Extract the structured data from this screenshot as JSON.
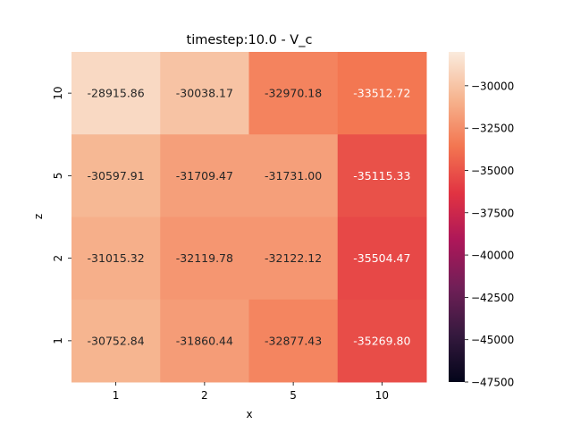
{
  "chart_data": {
    "type": "heatmap",
    "title": "timestep:10.0 - V_c",
    "xlabel": "x",
    "ylabel": "z",
    "x_categories": [
      "1",
      "2",
      "5",
      "10"
    ],
    "y_categories": [
      "10",
      "5",
      "2",
      "1"
    ],
    "values": [
      [
        -28915.86,
        -30038.17,
        -32970.18,
        -33512.72
      ],
      [
        -30597.91,
        -31709.47,
        -31731.0,
        -35115.33
      ],
      [
        -31015.32,
        -32119.78,
        -32122.12,
        -35504.47
      ],
      [
        -30752.84,
        -31860.44,
        -32877.43,
        -35269.8
      ]
    ],
    "value_labels": [
      [
        "-28915.86",
        "-30038.17",
        "-32970.18",
        "-33512.72"
      ],
      [
        "-30597.91",
        "-31709.47",
        "-31731.00",
        "-35115.33"
      ],
      [
        "-31015.32",
        "-32119.78",
        "-32122.12",
        "-35504.47"
      ],
      [
        "-30752.84",
        "-31860.44",
        "-32877.43",
        "-35269.80"
      ]
    ],
    "colorbar": {
      "vmin": -47500,
      "vmax": -28000,
      "ticks": [
        -30000,
        -32500,
        -35000,
        -37500,
        -40000,
        -42500,
        -45000,
        -47500
      ],
      "tick_labels": [
        "−30000",
        "−32500",
        "−35000",
        "−37500",
        "−40000",
        "−42500",
        "−45000",
        "−47500"
      ],
      "colormap": "rocket",
      "colormap_stops": [
        "#03051a",
        "#35193e",
        "#701f57",
        "#ad1759",
        "#e13342",
        "#f37651",
        "#f6b48f",
        "#faebdd"
      ]
    }
  }
}
